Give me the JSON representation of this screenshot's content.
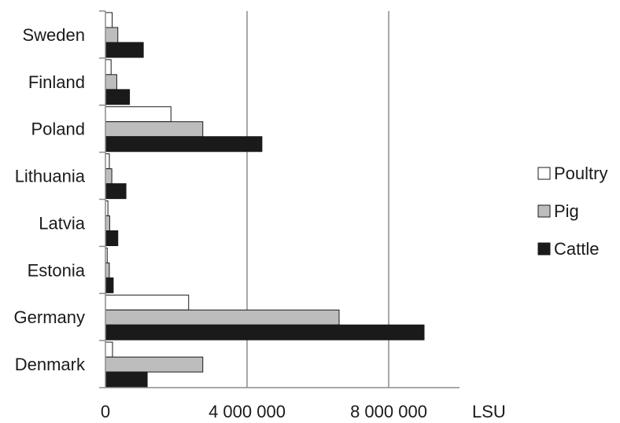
{
  "chart_data": {
    "type": "bar",
    "orientation": "horizontal",
    "categories": [
      "Denmark",
      "Germany",
      "Estonia",
      "Latvia",
      "Lithuania",
      "Poland",
      "Finland",
      "Sweden"
    ],
    "series": [
      {
        "name": "Poultry",
        "color": "#ffffff",
        "values": [
          200000,
          2350000,
          50000,
          70000,
          110000,
          1850000,
          160000,
          190000
        ]
      },
      {
        "name": "Pig",
        "color": "#bdbdbd",
        "values": [
          2750000,
          6600000,
          110000,
          120000,
          180000,
          2750000,
          320000,
          350000
        ]
      },
      {
        "name": "Cattle",
        "color": "#1a1a1a",
        "values": [
          1180000,
          9000000,
          220000,
          350000,
          580000,
          4420000,
          680000,
          1070000
        ]
      }
    ],
    "xlim": [
      0,
      10000000
    ],
    "xticks": [
      0,
      4000000,
      8000000
    ],
    "xtick_labels": [
      "0",
      "4 000 000",
      "8 000 000"
    ],
    "xunit": "LSU",
    "grid": "vertical",
    "legend_position": "right"
  }
}
